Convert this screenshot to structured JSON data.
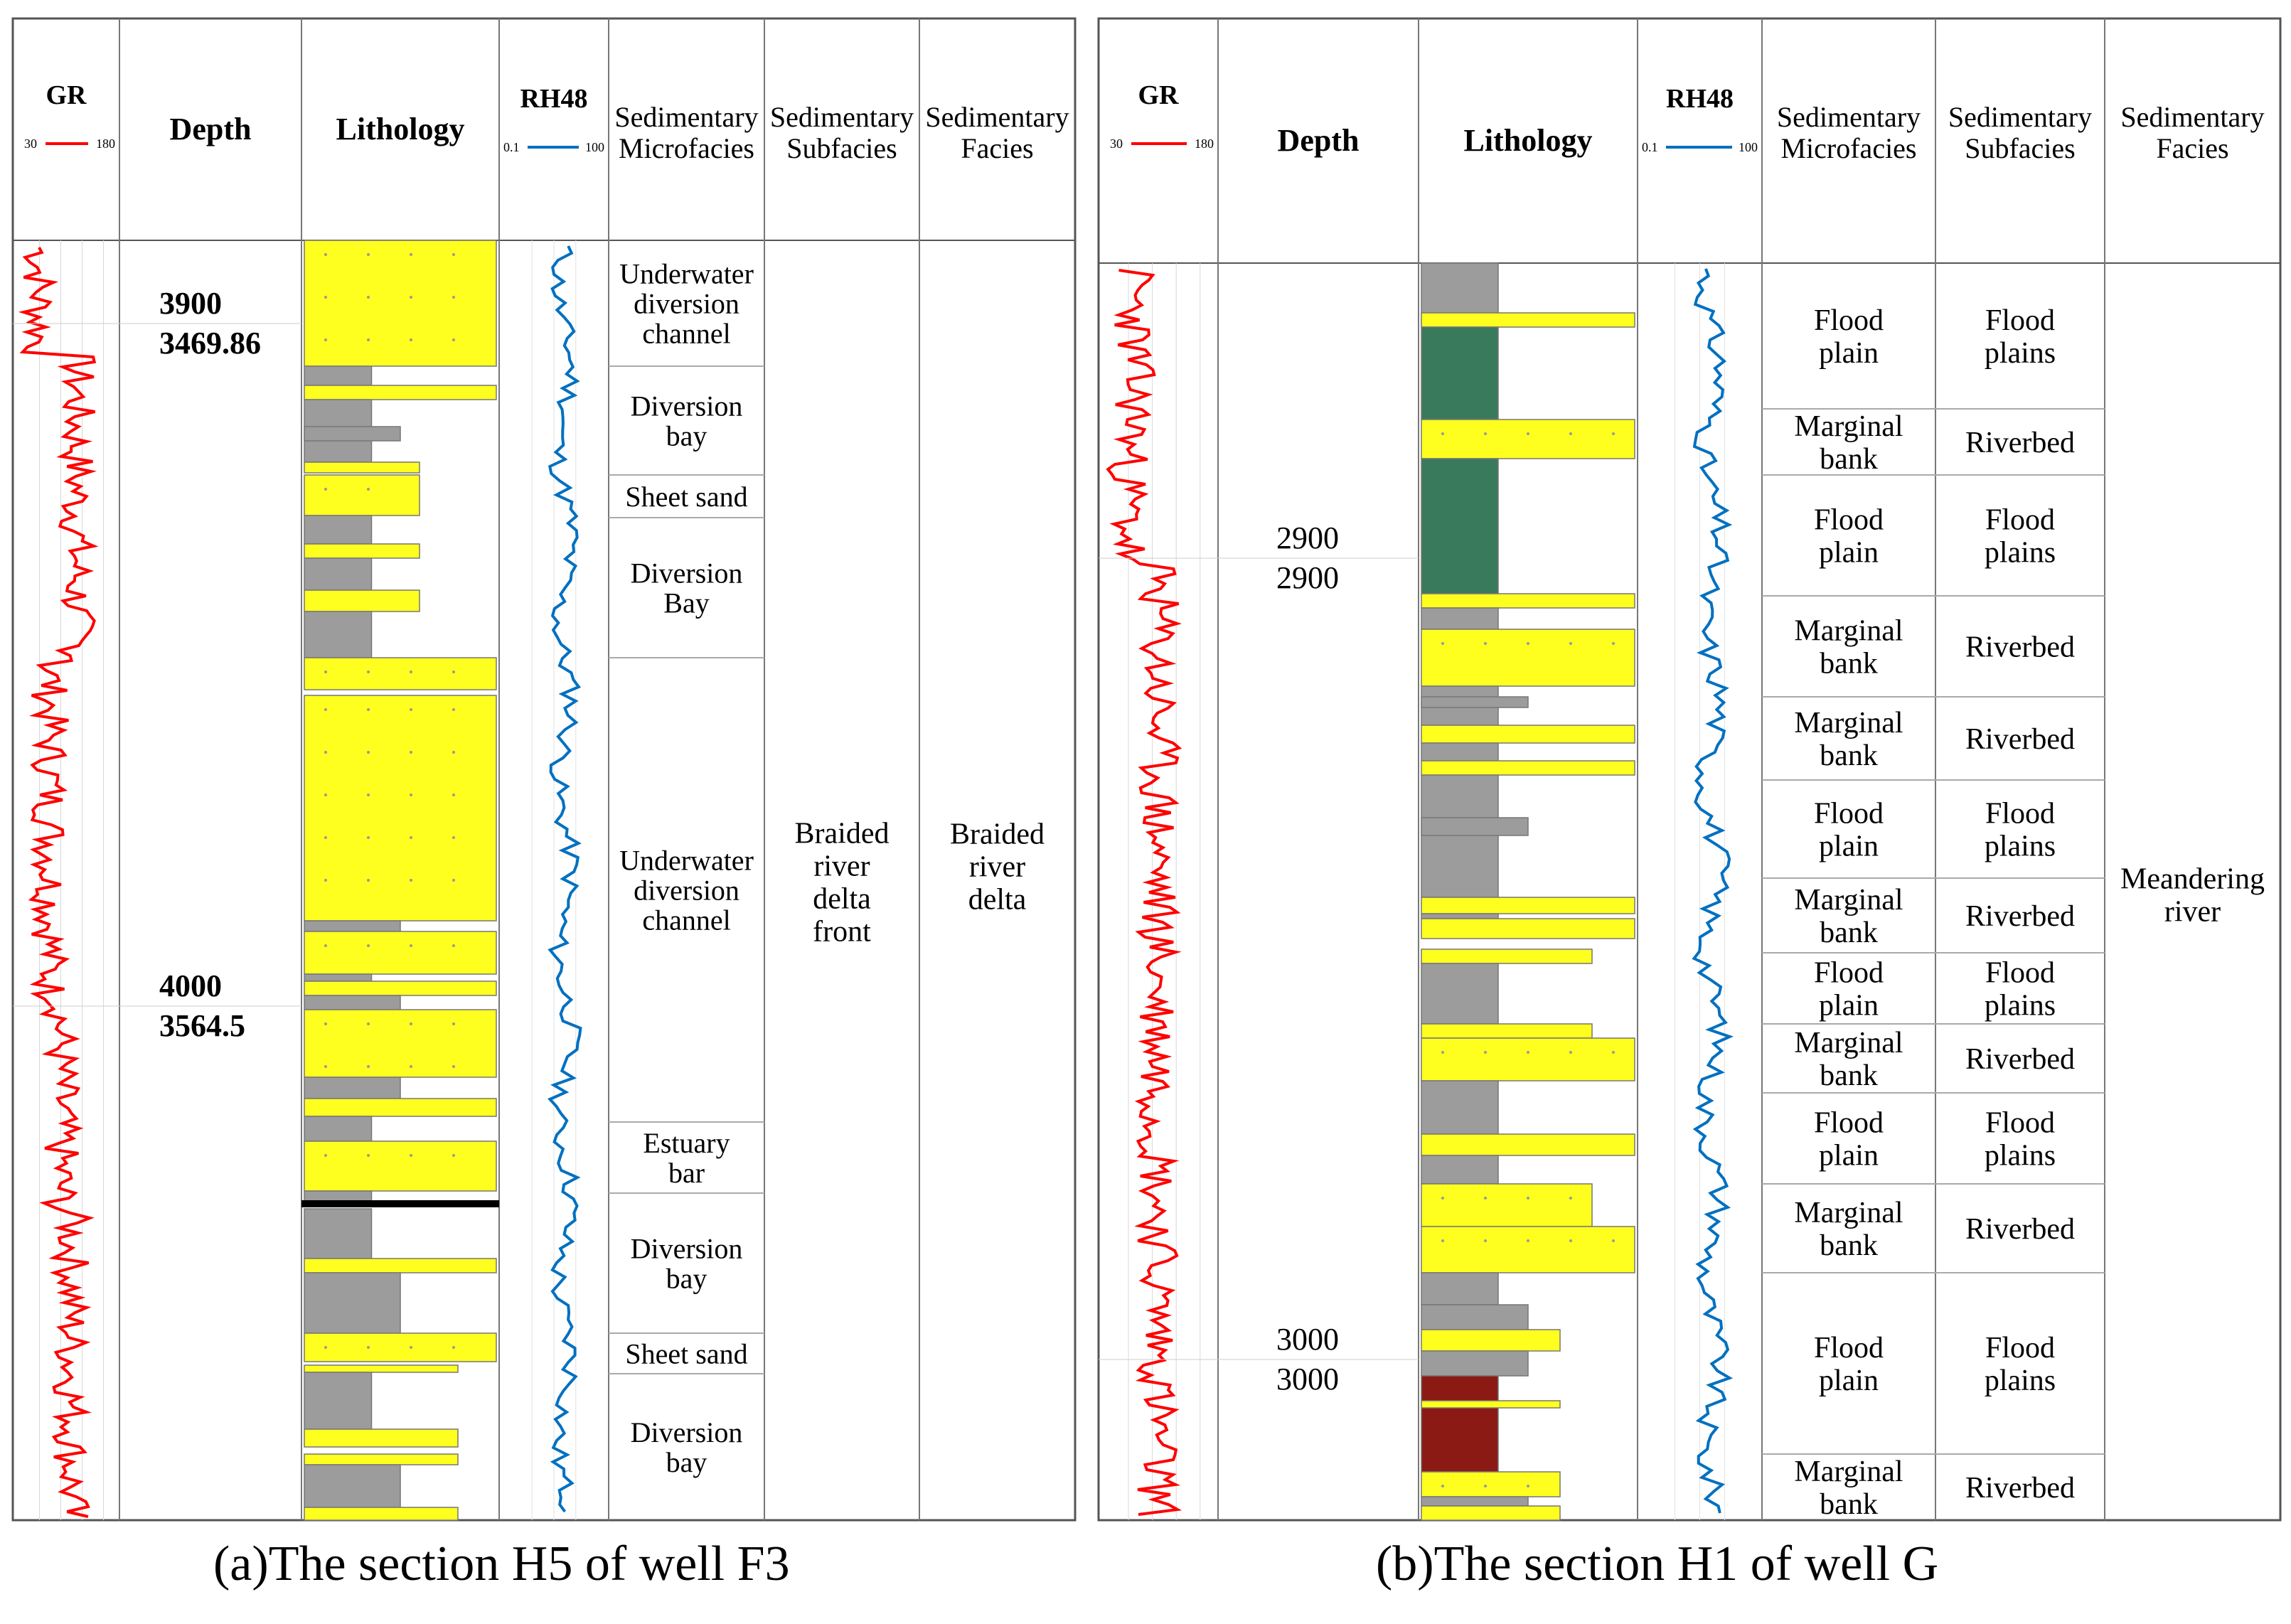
{
  "panel_a": {
    "caption": "(a)The section H5 of well F3",
    "gr_header": {
      "title": "GR",
      "min": "30",
      "max": "180"
    },
    "depth_title": "Depth",
    "lithology_title": "Lithology",
    "rh_header": {
      "title": "RH48",
      "min": "0.1",
      "max": "100"
    },
    "col_micro": [
      "Sedimentary",
      "Microfacies"
    ],
    "col_sub": [
      "Sedimentary",
      "Subfacies"
    ],
    "col_facies": [
      "Sedimentary",
      "Facies"
    ],
    "depth_labels": [
      {
        "a": "3900",
        "b": "3469.86"
      },
      {
        "a": "4000",
        "b": "3564.5"
      }
    ],
    "microfacies": [
      [
        "Underwater",
        "diversion",
        "channel"
      ],
      [
        "Diversion",
        "bay"
      ],
      [
        "Sheet sand"
      ],
      [
        "Diversion",
        "Bay"
      ],
      [
        "Underwater",
        "diversion",
        "channel"
      ],
      [
        "Estuary",
        "bar"
      ],
      [
        "Diversion",
        "bay"
      ],
      [
        "Sheet sand"
      ],
      [
        "Diversion",
        "bay"
      ]
    ],
    "subfacies": [
      "Braided",
      "river",
      "delta",
      "front"
    ],
    "facies": [
      "Braided",
      "river",
      "delta"
    ]
  },
  "panel_b": {
    "caption": "(b)The section H1 of well G",
    "gr_header": {
      "title": "GR",
      "min": "30",
      "max": "180"
    },
    "depth_title": "Depth",
    "lithology_title": "Lithology",
    "rh_header": {
      "title": "RH48",
      "min": "0.1",
      "max": "100"
    },
    "col_micro": [
      "Sedimentary",
      "Microfacies"
    ],
    "col_sub": [
      "Sedimentary",
      "Subfacies"
    ],
    "col_facies": [
      "Sedimentary",
      "Facies"
    ],
    "depth_labels": [
      {
        "a": "2900",
        "b": "2900"
      },
      {
        "a": "3000",
        "b": "3000"
      }
    ],
    "intervals": [
      {
        "micro": [
          "Flood",
          "plain"
        ],
        "sub": [
          "Flood",
          "plains"
        ]
      },
      {
        "micro": [
          "Marginal",
          "bank"
        ],
        "sub": [
          "Riverbed"
        ]
      },
      {
        "micro": [
          "Flood",
          "plain"
        ],
        "sub": [
          "Flood",
          "plains"
        ]
      },
      {
        "micro": [
          "Marginal",
          "bank"
        ],
        "sub": [
          "Riverbed"
        ]
      },
      {
        "micro": [
          "Marginal",
          "bank"
        ],
        "sub": [
          "Riverbed"
        ]
      },
      {
        "micro": [
          "Flood",
          "plain"
        ],
        "sub": [
          "Flood",
          "plains"
        ]
      },
      {
        "micro": [
          "Marginal",
          "bank"
        ],
        "sub": [
          "Riverbed"
        ]
      },
      {
        "micro": [
          "Flood",
          "plain"
        ],
        "sub": [
          "Flood",
          "plains"
        ]
      },
      {
        "micro": [
          "Marginal",
          "bank"
        ],
        "sub": [
          "Riverbed"
        ]
      },
      {
        "micro": [
          "Flood",
          "plain"
        ],
        "sub": [
          "Flood",
          "plains"
        ]
      },
      {
        "micro": [
          "Marginal",
          "bank"
        ],
        "sub": [
          "Riverbed"
        ]
      },
      {
        "micro": [
          "Flood",
          "plain"
        ],
        "sub": [
          "Flood",
          "plains"
        ]
      },
      {
        "micro": [
          "Marginal",
          "bank"
        ],
        "sub": [
          "Riverbed"
        ]
      }
    ],
    "facies": [
      "Meandering",
      "river"
    ]
  },
  "colors": {
    "gr_curve": "#ff0000",
    "rh_curve": "#0070c0",
    "sandstone": "#ffff1f",
    "mudstone": "#9c9c9c",
    "green_mudstone": "#3a7a5c",
    "red_mudstone": "#8b1a14",
    "grid": "#888888"
  }
}
